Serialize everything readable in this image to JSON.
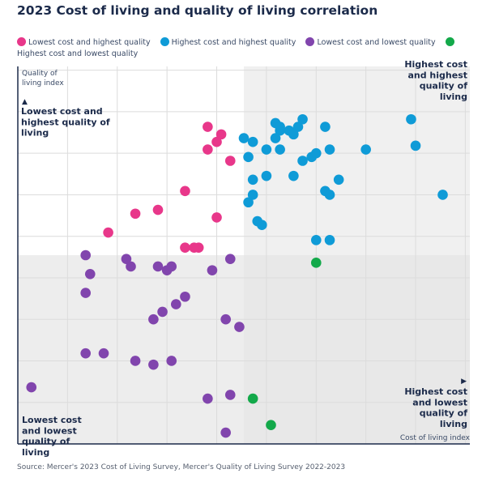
{
  "chart_data": {
    "type": "scatter",
    "title": "2023 Cost of living and quality of living correlation",
    "xlabel": "Cost of living index",
    "ylabel": "Quality of living index",
    "xlim": [
      0,
      100
    ],
    "ylim": [
      0,
      100
    ],
    "grid": true,
    "legend_position": "top",
    "source": "Source: Mercer's 2023 Cost of Living Survey, Mercer's Quality of Living Survey 2022-2023",
    "quadrant_labels": {
      "top_left": "Lowest cost and highest quality of living",
      "top_right": "Highest cost and highest quality of living",
      "bottom_left": "Lowest cost and lowest quality of living",
      "bottom_right": "Highest cost and lowest quality of living"
    },
    "series": [
      {
        "name": "Lowest cost and highest quality",
        "color": "#e8378a",
        "points": [
          [
            42,
            84
          ],
          [
            45,
            82
          ],
          [
            44,
            80
          ],
          [
            42,
            78
          ],
          [
            47,
            75
          ],
          [
            37,
            67
          ],
          [
            26,
            61
          ],
          [
            31,
            62
          ],
          [
            44,
            60
          ],
          [
            20,
            56
          ],
          [
            37,
            52
          ],
          [
            40,
            52
          ],
          [
            39,
            52
          ]
        ]
      },
      {
        "name": "Highest cost and highest quality",
        "color": "#0f9bd7",
        "points": [
          [
            57,
            85
          ],
          [
            58,
            83
          ],
          [
            58,
            84
          ],
          [
            60,
            83
          ],
          [
            62,
            84
          ],
          [
            61,
            82
          ],
          [
            63,
            86
          ],
          [
            68,
            84
          ],
          [
            87,
            86
          ],
          [
            50,
            81
          ],
          [
            52,
            80
          ],
          [
            55,
            78
          ],
          [
            57,
            81
          ],
          [
            58,
            78
          ],
          [
            63,
            75
          ],
          [
            65,
            76
          ],
          [
            66,
            77
          ],
          [
            69,
            78
          ],
          [
            51,
            76
          ],
          [
            52,
            70
          ],
          [
            55,
            71
          ],
          [
            61,
            71
          ],
          [
            71,
            70
          ],
          [
            77,
            78
          ],
          [
            68,
            67
          ],
          [
            69,
            66
          ],
          [
            52,
            66
          ],
          [
            51,
            64
          ],
          [
            53,
            59
          ],
          [
            54,
            58
          ],
          [
            66,
            54
          ],
          [
            69,
            54
          ],
          [
            88,
            79
          ],
          [
            94,
            66
          ]
        ]
      },
      {
        "name": "Highest cost and lowest quality",
        "color": "#13a94a",
        "points": [
          [
            66,
            48
          ],
          [
            52,
            12
          ],
          [
            56,
            5
          ]
        ]
      },
      {
        "name": "Lowest cost and lowest quality",
        "color": "#8145ad",
        "points": [
          [
            15,
            50
          ],
          [
            16,
            45
          ],
          [
            24,
            49
          ],
          [
            25,
            47
          ],
          [
            31,
            47
          ],
          [
            33,
            46
          ],
          [
            34,
            47
          ],
          [
            43,
            46
          ],
          [
            47,
            49
          ],
          [
            15,
            40
          ],
          [
            37,
            39
          ],
          [
            35,
            37
          ],
          [
            32,
            35
          ],
          [
            30,
            33
          ],
          [
            46,
            33
          ],
          [
            49,
            31
          ],
          [
            15,
            24
          ],
          [
            19,
            24
          ],
          [
            26,
            22
          ],
          [
            30,
            21
          ],
          [
            34,
            22
          ],
          [
            3,
            15
          ],
          [
            42,
            12
          ],
          [
            47,
            13
          ],
          [
            46,
            3
          ]
        ]
      }
    ]
  }
}
